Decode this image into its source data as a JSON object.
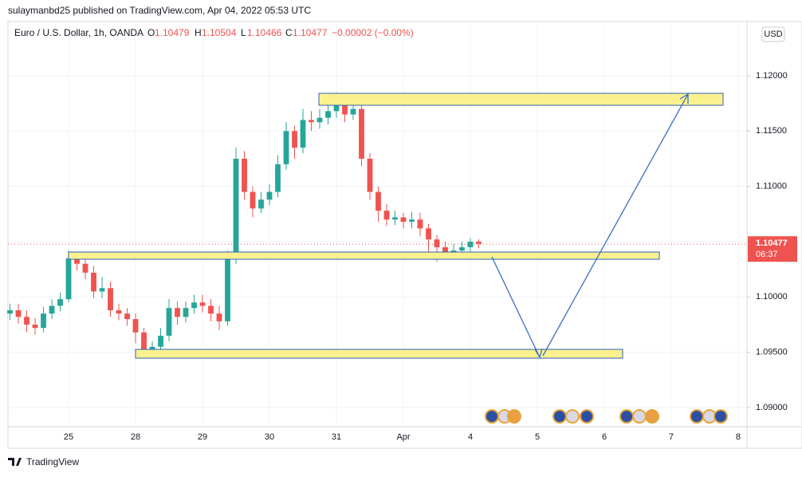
{
  "header": {
    "publisher": "sulaymanbd25 published on TradingView.com, Apr 04, 2022 05:53 UTC"
  },
  "footer": {
    "brand": "TradingView"
  },
  "chart_data": {
    "type": "candlestick",
    "symbol": "Euro / U.S. Dollar, 1h, OANDA",
    "legend": {
      "open_label": "O",
      "open": 1.10479,
      "high_label": "H",
      "high": 1.10504,
      "low_label": "L",
      "low": 1.10466,
      "close_label": "C",
      "close": 1.10477,
      "change": "−0.00002 (−0.00%)"
    },
    "currency": "USD",
    "last_price": 1.10477,
    "countdown": "06:37",
    "up_color": "#26a69a",
    "down_color": "#ef5350",
    "last_price_color": "#ef5350",
    "xlim": [
      -0.905,
      10.131
    ],
    "xticks": [
      {
        "value": 0,
        "label": "25"
      },
      {
        "value": 1,
        "label": "28"
      },
      {
        "value": 2,
        "label": "29"
      },
      {
        "value": 3,
        "label": "30"
      },
      {
        "value": 4,
        "label": "31"
      },
      {
        "value": 5,
        "label": "Apr"
      },
      {
        "value": 6,
        "label": "4"
      },
      {
        "value": 7,
        "label": "5"
      },
      {
        "value": 8,
        "label": "6"
      },
      {
        "value": 9,
        "label": "7"
      },
      {
        "value": 10,
        "label": "8"
      }
    ],
    "ylim": [
      1.08827,
      1.1249
    ],
    "yticks": [
      {
        "value": 1.09,
        "label": "1.09000"
      },
      {
        "value": 1.095,
        "label": "1.09500"
      },
      {
        "value": 1.1,
        "label": "1.10000"
      },
      {
        "value": 1.105,
        "label": "1.10500"
      },
      {
        "value": 1.11,
        "label": "1.11000"
      },
      {
        "value": 1.115,
        "label": "1.11500"
      },
      {
        "value": 1.12,
        "label": "1.12000"
      }
    ],
    "x": [
      -0.875,
      -0.75,
      -0.625,
      -0.5,
      -0.375,
      -0.25,
      -0.125,
      0,
      0.125,
      0.25,
      0.375,
      0.5,
      0.625,
      0.75,
      0.875,
      1,
      1.125,
      1.25,
      1.375,
      1.5,
      1.625,
      1.75,
      1.875,
      2,
      2.125,
      2.25,
      2.375,
      2.5,
      2.625,
      2.75,
      2.875,
      3,
      3.125,
      3.25,
      3.375,
      3.5,
      3.625,
      3.75,
      3.875,
      4,
      4.125,
      4.25,
      4.375,
      4.5,
      4.625,
      4.75,
      4.875,
      5,
      5.125,
      5.25,
      5.375,
      5.5,
      5.625,
      5.75,
      5.875,
      6,
      6.125
    ],
    "open": [
      1.0985,
      1.0988,
      1.0982,
      1.0975,
      1.0972,
      1.0985,
      1.0992,
      1.0998,
      1.1035,
      1.103,
      1.1022,
      1.1005,
      1.1008,
      1.0988,
      1.0985,
      1.098,
      1.0968,
      1.0952,
      1.0955,
      1.0965,
      1.099,
      1.0982,
      1.099,
      1.0995,
      1.0992,
      1.0985,
      1.0978,
      1.1035,
      1.1125,
      1.1095,
      1.108,
      1.1088,
      1.1095,
      1.112,
      1.115,
      1.1135,
      1.116,
      1.1158,
      1.1162,
      1.1168,
      1.1178,
      1.1165,
      1.117,
      1.1125,
      1.1095,
      1.1078,
      1.107,
      1.1072,
      1.1068,
      1.107,
      1.1062,
      1.1052,
      1.1045,
      1.104,
      1.1042,
      1.1045,
      1.105
    ],
    "high": [
      1.0994,
      1.0994,
      1.0988,
      1.0981,
      1.0991,
      1.0998,
      1.1004,
      1.1042,
      1.1041,
      1.1036,
      1.1028,
      1.1018,
      1.1014,
      1.0994,
      1.099,
      1.0985,
      1.0972,
      1.096,
      1.0972,
      1.0998,
      1.0996,
      1.0996,
      1.1002,
      1.1002,
      1.0998,
      1.0992,
      1.1042,
      1.1135,
      1.1132,
      1.11,
      1.1095,
      1.1102,
      1.1128,
      1.1158,
      1.1155,
      1.117,
      1.1168,
      1.117,
      1.1174,
      1.1185,
      1.1182,
      1.1178,
      1.1175,
      1.113,
      1.11,
      1.1084,
      1.1078,
      1.1076,
      1.1077,
      1.1076,
      1.1066,
      1.1056,
      1.105,
      1.1048,
      1.105,
      1.1053,
      1.1052
    ],
    "low": [
      1.0979,
      1.0976,
      1.0968,
      1.0966,
      1.0968,
      1.098,
      1.0987,
      1.0995,
      1.1024,
      1.1016,
      1.0999,
      1.0999,
      1.0982,
      1.0979,
      1.0974,
      1.0958,
      1.0946,
      1.0946,
      1.0948,
      1.096,
      1.0975,
      1.0977,
      1.0985,
      1.0986,
      1.0978,
      1.097,
      1.0974,
      1.103,
      1.1088,
      1.1072,
      1.1076,
      1.1083,
      1.109,
      1.1115,
      1.1125,
      1.113,
      1.115,
      1.1152,
      1.1156,
      1.1162,
      1.1158,
      1.116,
      1.1118,
      1.1088,
      1.1068,
      1.1064,
      1.1065,
      1.1062,
      1.1062,
      1.1055,
      1.104,
      1.1032,
      1.1034,
      1.1036,
      1.1038,
      1.104,
      1.1044
    ],
    "close": [
      1.0988,
      1.0982,
      1.0975,
      1.0972,
      1.0985,
      1.0992,
      1.0998,
      1.1035,
      1.103,
      1.1022,
      1.1005,
      1.1008,
      1.0988,
      1.0985,
      1.098,
      1.0968,
      1.0952,
      1.0955,
      1.0965,
      1.099,
      1.0982,
      1.099,
      1.0995,
      1.0992,
      1.0985,
      1.0978,
      1.1035,
      1.1125,
      1.1095,
      1.108,
      1.1088,
      1.1095,
      1.112,
      1.115,
      1.1135,
      1.116,
      1.1158,
      1.1162,
      1.1168,
      1.1178,
      1.1165,
      1.117,
      1.1125,
      1.1095,
      1.1078,
      1.107,
      1.1072,
      1.1068,
      1.107,
      1.1062,
      1.1052,
      1.1045,
      1.104,
      1.1042,
      1.1045,
      1.105,
      1.1048
    ]
  }
}
